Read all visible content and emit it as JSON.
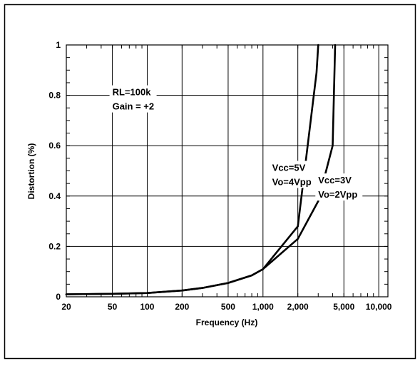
{
  "chart_data": {
    "type": "line",
    "title": "",
    "xlabel": "Frequency (Hz)",
    "ylabel": "Distortion (%)",
    "x_scale": "log",
    "xlim": [
      20,
      12000
    ],
    "ylim": [
      0,
      1
    ],
    "grid": true,
    "x_ticks": [
      20,
      50,
      100,
      200,
      500,
      1000,
      2000,
      5000,
      10000
    ],
    "x_tick_labels": [
      "20",
      "50",
      "100",
      "200",
      "500",
      "1,000",
      "2,000",
      "5,000",
      "10,000"
    ],
    "y_ticks": [
      0,
      0.2,
      0.4,
      0.6,
      0.8,
      1
    ],
    "y_tick_labels": [
      "0",
      "0.2",
      "0.4",
      "0.6",
      "0.8",
      "1"
    ],
    "annotations": [
      {
        "lines": [
          "RL=100k",
          "Gain = +2"
        ],
        "x": 50,
        "y": 0.8
      },
      {
        "lines": [
          "Vcc=5V",
          "Vo=4Vpp"
        ],
        "x": 1200,
        "y": 0.5
      },
      {
        "lines": [
          "Vcc=3V",
          "Vo=2Vpp"
        ],
        "x": 3000,
        "y": 0.45
      }
    ],
    "series": [
      {
        "name": "",
        "x": [
          20,
          50,
          100,
          200,
          300,
          500,
          800,
          1000,
          2000,
          2900,
          3000
        ],
        "y": [
          0.01,
          0.012,
          0.015,
          0.025,
          0.035,
          0.055,
          0.085,
          0.11,
          0.28,
          0.89,
          1.0
        ]
      },
      {
        "name": "",
        "x": [
          20,
          50,
          100,
          200,
          300,
          500,
          800,
          1000,
          2000,
          3000,
          4000,
          4200
        ],
        "y": [
          0.01,
          0.012,
          0.015,
          0.025,
          0.035,
          0.055,
          0.085,
          0.11,
          0.23,
          0.38,
          0.6,
          1.0
        ]
      }
    ]
  }
}
